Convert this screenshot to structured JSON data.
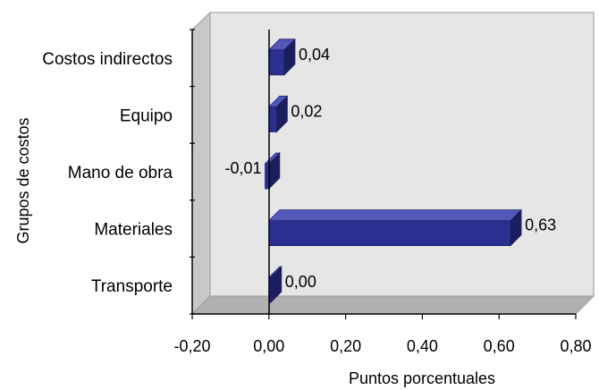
{
  "chart_data": {
    "type": "bar",
    "orientation": "horizontal",
    "style": "3d",
    "categories": [
      "Costos indirectos",
      "Equipo",
      "Mano de obra",
      "Materiales",
      "Transporte"
    ],
    "values": [
      0.04,
      0.02,
      -0.01,
      0.63,
      0.0
    ],
    "value_labels": [
      "0,04",
      "0,02",
      "-0,01",
      "0,63",
      "0,00"
    ],
    "xlabel": "Puntos porcentuales",
    "ylabel": "Grupos de costos",
    "xlim": [
      -0.2,
      0.8
    ],
    "xticks": [
      -0.2,
      0.0,
      0.2,
      0.4,
      0.6,
      0.8
    ],
    "xtick_labels": [
      "-0,20",
      "0,00",
      "0,20",
      "0,40",
      "0,60",
      "0,80"
    ],
    "grid": false,
    "legend": "none",
    "colors": {
      "bar_front": "#2b2f8f",
      "bar_top": "#5257b8",
      "bar_side": "#1a1d5e",
      "wall": "#e6e6e6",
      "wall_side": "#c8c8c8",
      "floor": "#b0b0b0"
    }
  }
}
